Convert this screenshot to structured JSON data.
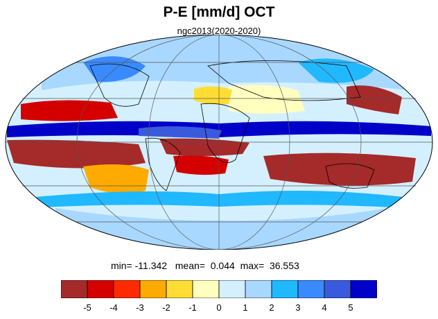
{
  "title": "P-E [mm/d] OCT",
  "subtitle": "ngc2013(2020-2020)",
  "stats": {
    "min_label": "min=",
    "min_value": "-11.342",
    "mean_label": "mean=",
    "mean_value": "0.044",
    "max_label": "max=",
    "max_value": "36.553"
  },
  "colorbar": {
    "colors": [
      "#a52a2a",
      "#d40000",
      "#ff2a00",
      "#ffaa00",
      "#ffdd33",
      "#ffffc0",
      "#d4f0ff",
      "#a8d8ff",
      "#20b8ff",
      "#3a8aff",
      "#3a5ade",
      "#0000c8"
    ],
    "labels": [
      "-5",
      "-4",
      "-3",
      "-2",
      "-1",
      "0",
      "1",
      "2",
      "3",
      "4",
      "5"
    ]
  }
}
